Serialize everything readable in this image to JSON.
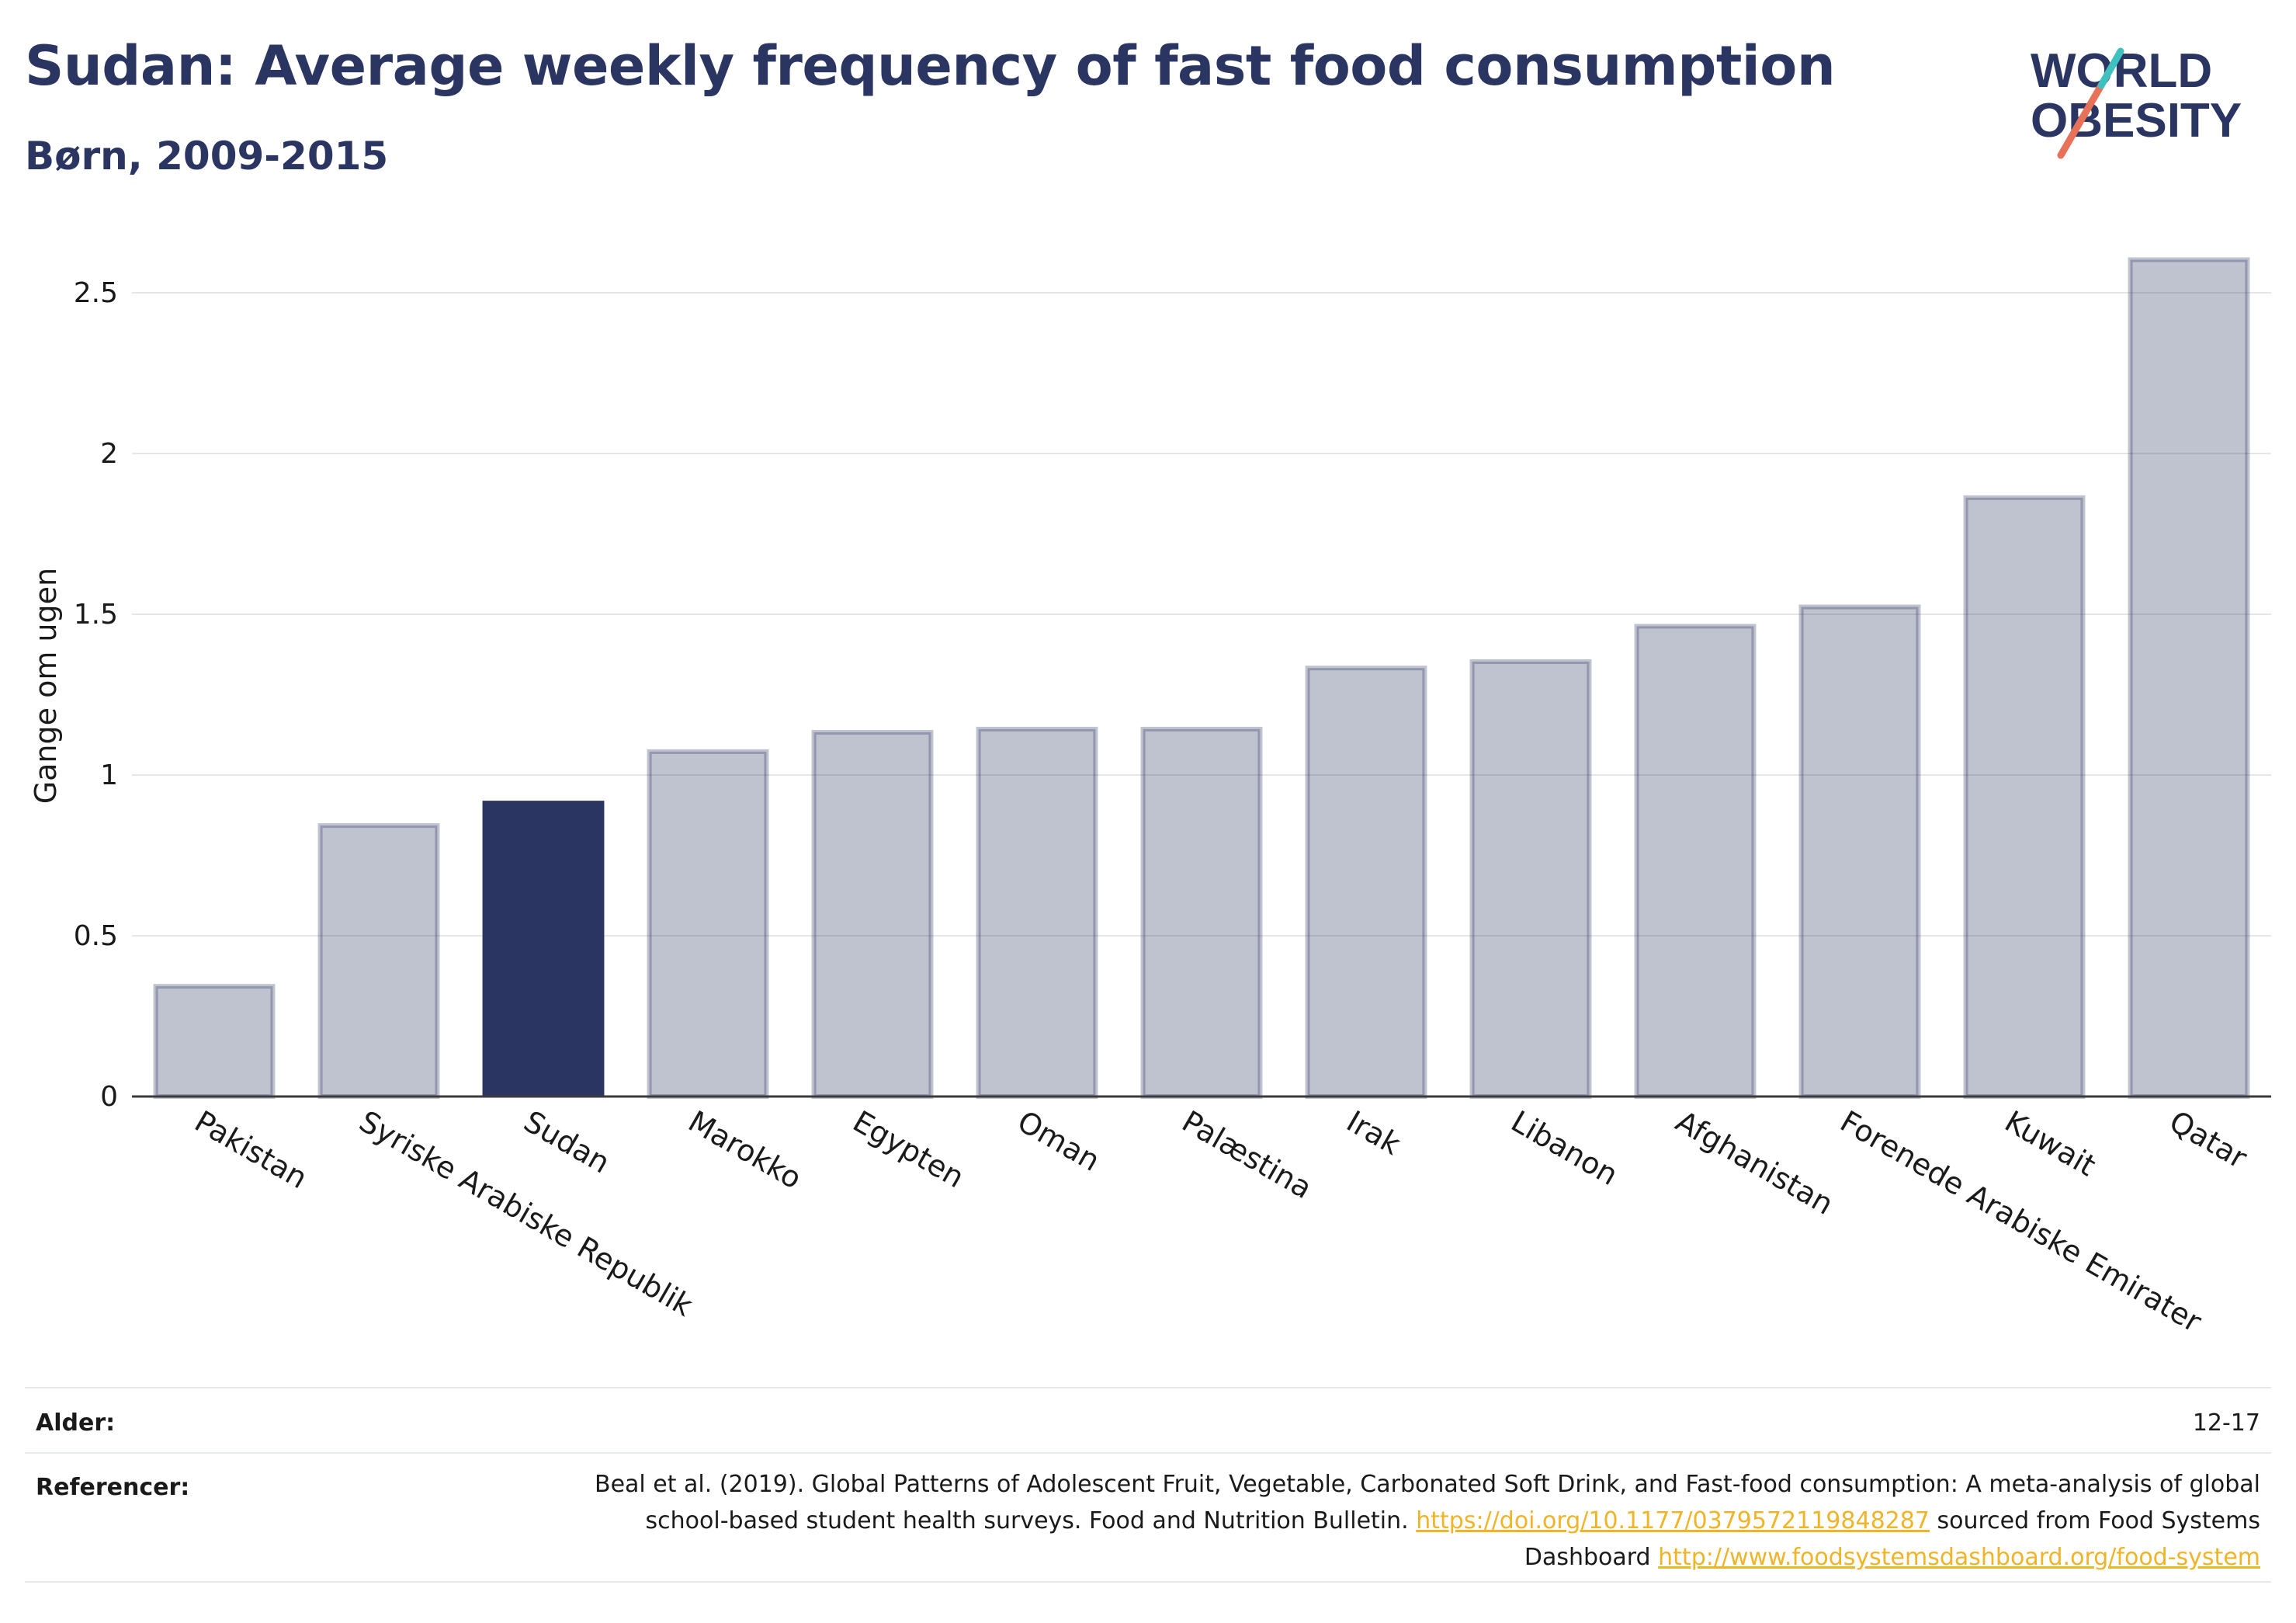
{
  "title": "Sudan: Average weekly frequency of fast food consumption",
  "subtitle": "Børn, 2009-2015",
  "logo": {
    "line1": "WORLD",
    "line2": "OBESITY",
    "colors": [
      "#2b3561",
      "#e8715a",
      "#3fc1c0"
    ]
  },
  "chart_data": {
    "type": "bar",
    "ylabel": "Gange om ugen",
    "xlabel": "",
    "ylim": [
      0,
      2.7
    ],
    "yticks": [
      0,
      0.5,
      1,
      1.5,
      2,
      2.5
    ],
    "ytick_labels": [
      "0",
      "0.5",
      "1",
      "1.5",
      "2",
      "2.5"
    ],
    "grid": true,
    "categories": [
      "Pakistan",
      "Syriske Arabiske Republik",
      "Sudan",
      "Marokko",
      "Egypten",
      "Oman",
      "Palæstina",
      "Irak",
      "Libanon",
      "Afghanistan",
      "Forenede Arabiske Emirater",
      "Kuwait",
      "Qatar"
    ],
    "values": [
      0.35,
      0.85,
      0.92,
      1.08,
      1.14,
      1.15,
      1.15,
      1.34,
      1.36,
      1.47,
      1.53,
      1.87,
      2.61
    ],
    "highlight": "Sudan",
    "colors": {
      "highlight": "#2b3561",
      "other": "#2b3561"
    }
  },
  "footer": {
    "age_label": "Alder:",
    "age_value": "12-17",
    "refs_label": "Referencer:",
    "refs_text_1": "Beal et al. (2019). Global Patterns of Adolescent Fruit, Vegetable, Carbonated Soft Drink, and Fast-food consumption: A meta-analysis of global school-based student health surveys. Food and Nutrition Bulletin.",
    "refs_link_1": "https://doi.org/10.1177/0379572119848287",
    "refs_text_2": "sourced from Food Systems Dashboard",
    "refs_link_2": "http://www.foodsystemsdashboard.org/food-system"
  }
}
